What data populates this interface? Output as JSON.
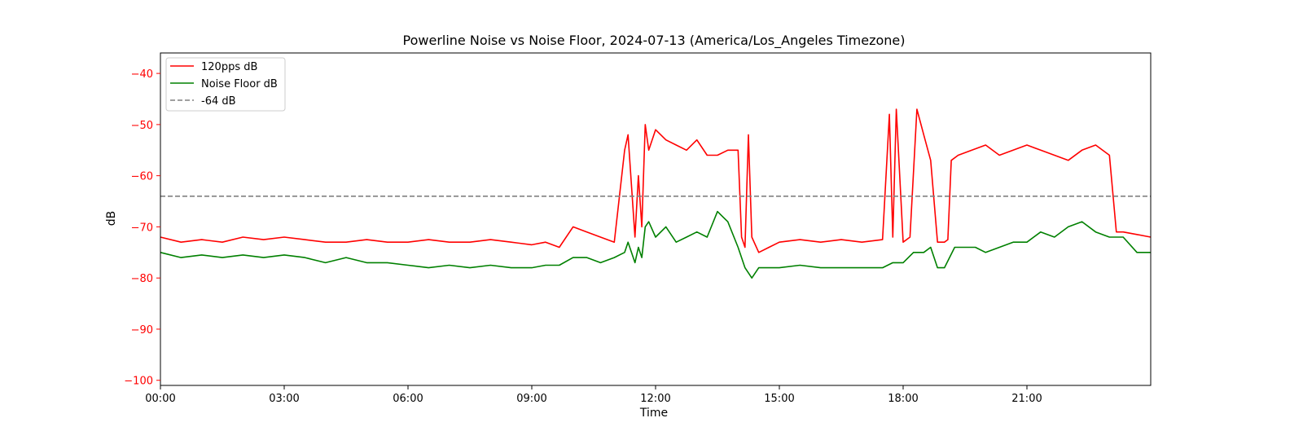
{
  "chart_data": {
    "type": "line",
    "title": "Powerline Noise vs Noise Floor, 2024-07-13 (America/Los_Angeles Timezone)",
    "xlabel": "Time",
    "ylabel": "dB",
    "xlim": [
      "00:00",
      "24:00"
    ],
    "ylim": [
      -101,
      -36
    ],
    "xticks": [
      "00:00",
      "03:00",
      "06:00",
      "09:00",
      "12:00",
      "15:00",
      "18:00",
      "21:00"
    ],
    "yticks": [
      -40,
      -50,
      -60,
      -70,
      -80,
      -90,
      -100
    ],
    "grid": false,
    "legend_position": "upper-left",
    "colors": {
      "signal": "#ff0000",
      "floor": "#008000",
      "threshold": "#808080",
      "ylabel": "#ff0000"
    },
    "series": [
      {
        "name": "120pps dB",
        "x": [
          "00:00",
          "00:30",
          "01:00",
          "01:30",
          "02:00",
          "02:30",
          "03:00",
          "03:30",
          "04:00",
          "04:30",
          "05:00",
          "05:30",
          "06:00",
          "06:30",
          "07:00",
          "07:30",
          "08:00",
          "08:30",
          "09:00",
          "09:20",
          "09:40",
          "10:00",
          "10:20",
          "10:40",
          "11:00",
          "11:15",
          "11:20",
          "11:30",
          "11:35",
          "11:40",
          "11:45",
          "11:50",
          "12:00",
          "12:15",
          "12:30",
          "12:45",
          "13:00",
          "13:15",
          "13:30",
          "13:45",
          "14:00",
          "14:05",
          "14:10",
          "14:15",
          "14:20",
          "14:30",
          "14:45",
          "15:00",
          "15:30",
          "16:00",
          "16:30",
          "17:00",
          "17:30",
          "17:40",
          "17:45",
          "17:50",
          "18:00",
          "18:10",
          "18:20",
          "18:30",
          "18:40",
          "18:50",
          "19:00",
          "19:05",
          "19:10",
          "19:20",
          "19:40",
          "20:00",
          "20:20",
          "20:40",
          "21:00",
          "21:20",
          "21:40",
          "22:00",
          "22:20",
          "22:40",
          "23:00",
          "23:10",
          "23:20",
          "23:40",
          "24:00"
        ],
        "values": [
          -72,
          -73,
          -72.5,
          -73,
          -72,
          -72.5,
          -72,
          -72.5,
          -73,
          -73,
          -72.5,
          -73,
          -73,
          -72.5,
          -73,
          -73,
          -72.5,
          -73,
          -73.5,
          -73,
          -74,
          -70,
          -71,
          -72,
          -73,
          -55,
          -52,
          -72,
          -60,
          -70,
          -50,
          -55,
          -51,
          -53,
          -54,
          -55,
          -53,
          -56,
          -56,
          -55,
          -55,
          -72,
          -74,
          -52,
          -72,
          -75,
          -74,
          -73,
          -72.5,
          -73,
          -72.5,
          -73,
          -72.5,
          -48,
          -72,
          -47,
          -73,
          -72,
          -47,
          -52,
          -57,
          -73,
          -73,
          -72.5,
          -57,
          -56,
          -55,
          -54,
          -56,
          -55,
          -54,
          -55,
          -56,
          -57,
          -55,
          -54,
          -56,
          -71,
          -71,
          -71.5,
          -72
        ]
      },
      {
        "name": "Noise Floor dB",
        "x": [
          "00:00",
          "00:30",
          "01:00",
          "01:30",
          "02:00",
          "02:30",
          "03:00",
          "03:30",
          "04:00",
          "04:30",
          "05:00",
          "05:30",
          "06:00",
          "06:30",
          "07:00",
          "07:30",
          "08:00",
          "08:30",
          "09:00",
          "09:20",
          "09:40",
          "10:00",
          "10:20",
          "10:40",
          "11:00",
          "11:15",
          "11:20",
          "11:30",
          "11:35",
          "11:40",
          "11:45",
          "11:50",
          "12:00",
          "12:15",
          "12:30",
          "12:45",
          "13:00",
          "13:15",
          "13:30",
          "13:45",
          "14:00",
          "14:10",
          "14:20",
          "14:30",
          "14:45",
          "15:00",
          "15:30",
          "16:00",
          "16:30",
          "17:00",
          "17:30",
          "17:45",
          "18:00",
          "18:15",
          "18:30",
          "18:40",
          "18:50",
          "19:00",
          "19:15",
          "19:30",
          "19:45",
          "20:00",
          "20:20",
          "20:40",
          "21:00",
          "21:20",
          "21:40",
          "22:00",
          "22:20",
          "22:40",
          "23:00",
          "23:20",
          "23:40",
          "24:00"
        ],
        "values": [
          -75,
          -76,
          -75.5,
          -76,
          -75.5,
          -76,
          -75.5,
          -76,
          -77,
          -76,
          -77,
          -77,
          -77.5,
          -78,
          -77.5,
          -78,
          -77.5,
          -78,
          -78,
          -77.5,
          -77.5,
          -76,
          -76,
          -77,
          -76,
          -75,
          -73,
          -77,
          -74,
          -76,
          -70,
          -69,
          -72,
          -70,
          -73,
          -72,
          -71,
          -72,
          -67,
          -69,
          -74,
          -78,
          -80,
          -78,
          -78,
          -78,
          -77.5,
          -78,
          -78,
          -78,
          -78,
          -77,
          -77,
          -75,
          -75,
          -74,
          -78,
          -78,
          -74,
          -74,
          -74,
          -75,
          -74,
          -73,
          -73,
          -71,
          -72,
          -70,
          -69,
          -71,
          -72,
          -72,
          -75,
          -75
        ]
      },
      {
        "name": "-64 dB",
        "style": "dashed",
        "x": [
          "00:00",
          "24:00"
        ],
        "values": [
          -64,
          -64
        ]
      }
    ]
  }
}
